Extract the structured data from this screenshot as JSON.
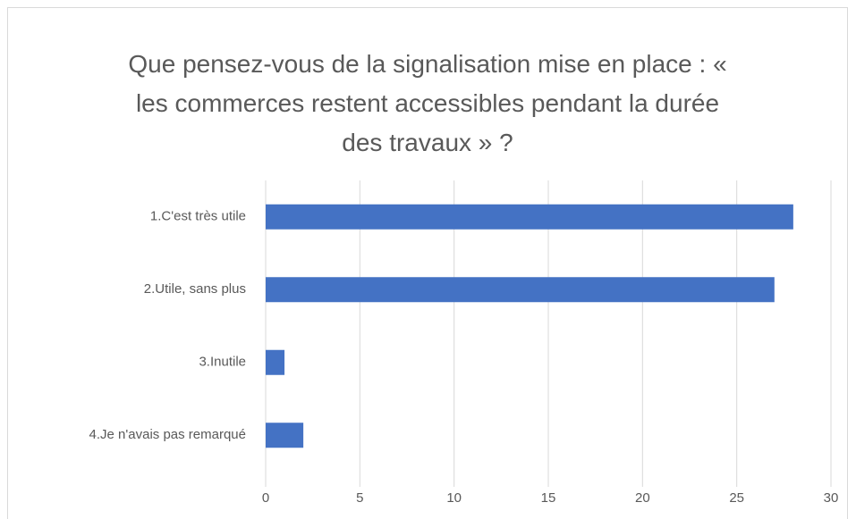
{
  "chart_data": {
    "type": "bar",
    "orientation": "horizontal",
    "title": "Que pensez-vous de la signalisation mise en place : « les commerces restent accessibles pendant la durée des travaux » ?",
    "categories": [
      "1.C'est très utile",
      "2.Utile, sans plus",
      "3.Inutile",
      "4.Je n'avais pas remarqué"
    ],
    "values": [
      28,
      27,
      1,
      2
    ],
    "color": "#4472c4",
    "xlim": [
      0,
      30
    ],
    "xticks": [
      0,
      5,
      10,
      15,
      20,
      25,
      30
    ],
    "grid": true
  }
}
